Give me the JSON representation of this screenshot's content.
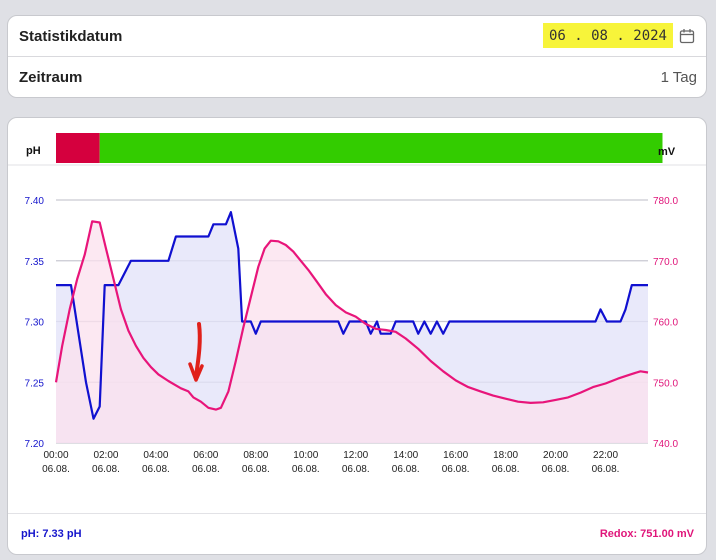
{
  "settings": {
    "date_label": "Statistikdatum",
    "date_value": "06 . 08 . 2024",
    "period_label": "Zeitraum",
    "period_value": "1 Tag",
    "calendar_icon": "calendar-icon",
    "highlight_color": "#f7f43a"
  },
  "chart_header": {
    "left_unit": "pH",
    "right_unit": "mV",
    "status_segments": [
      {
        "from_hour": 0,
        "to_hour": 1.75,
        "color": "#d5003e"
      },
      {
        "from_hour": 1.75,
        "to_hour": 24,
        "color": "#33cc00"
      }
    ]
  },
  "chart_data": {
    "type": "line",
    "title": "",
    "x_ticks": [
      {
        "time": "00:00",
        "date": "06.08."
      },
      {
        "time": "02:00",
        "date": "06.08."
      },
      {
        "time": "04:00",
        "date": "06.08."
      },
      {
        "time": "06:00",
        "date": "06.08."
      },
      {
        "time": "08:00",
        "date": "06.08."
      },
      {
        "time": "10:00",
        "date": "06.08."
      },
      {
        "time": "12:00",
        "date": "06.08."
      },
      {
        "time": "14:00",
        "date": "06.08."
      },
      {
        "time": "16:00",
        "date": "06.08."
      },
      {
        "time": "18:00",
        "date": "06.08."
      },
      {
        "time": "20:00",
        "date": "06.08."
      },
      {
        "time": "22:00",
        "date": "06.08."
      }
    ],
    "xlim_hours": [
      0,
      23.7
    ],
    "y_left": {
      "ticks": [
        "7.20",
        "7.25",
        "7.30",
        "7.35",
        "7.40"
      ],
      "ylim": [
        7.2,
        7.4
      ],
      "color": "#1515cc"
    },
    "y_right": {
      "ticks": [
        "740.0",
        "750.0",
        "760.0",
        "770.0",
        "780.0"
      ],
      "ylim": [
        740,
        780
      ],
      "color": "#e0157a"
    },
    "grid": true,
    "series": [
      {
        "axis": "left",
        "color": "#1010d0",
        "fill": "#e2e2f8",
        "points": [
          [
            0,
            7.33
          ],
          [
            0.6,
            7.33
          ],
          [
            0.9,
            7.29
          ],
          [
            1.2,
            7.25
          ],
          [
            1.5,
            7.22
          ],
          [
            1.75,
            7.23
          ],
          [
            1.95,
            7.33
          ],
          [
            2.5,
            7.33
          ],
          [
            3,
            7.35
          ],
          [
            3.7,
            7.35
          ],
          [
            4.5,
            7.35
          ],
          [
            4.8,
            7.37
          ],
          [
            5.5,
            7.37
          ],
          [
            6.1,
            7.37
          ],
          [
            6.3,
            7.38
          ],
          [
            6.8,
            7.38
          ],
          [
            7.0,
            7.39
          ],
          [
            7.3,
            7.36
          ],
          [
            7.45,
            7.3
          ],
          [
            7.8,
            7.3
          ],
          [
            8.0,
            7.29
          ],
          [
            8.2,
            7.3
          ],
          [
            9,
            7.3
          ],
          [
            10,
            7.3
          ],
          [
            11,
            7.3
          ],
          [
            11.3,
            7.3
          ],
          [
            11.5,
            7.29
          ],
          [
            11.75,
            7.3
          ],
          [
            12.4,
            7.3
          ],
          [
            12.6,
            7.29
          ],
          [
            12.85,
            7.3
          ],
          [
            13.0,
            7.29
          ],
          [
            13.4,
            7.29
          ],
          [
            13.6,
            7.3
          ],
          [
            14.3,
            7.3
          ],
          [
            14.5,
            7.29
          ],
          [
            14.75,
            7.3
          ],
          [
            15.0,
            7.29
          ],
          [
            15.25,
            7.3
          ],
          [
            15.5,
            7.29
          ],
          [
            15.75,
            7.3
          ],
          [
            17,
            7.3
          ],
          [
            18,
            7.3
          ],
          [
            19,
            7.3
          ],
          [
            20,
            7.3
          ],
          [
            21,
            7.3
          ],
          [
            21.6,
            7.3
          ],
          [
            21.8,
            7.31
          ],
          [
            22.05,
            7.3
          ],
          [
            22.6,
            7.3
          ],
          [
            22.8,
            7.31
          ],
          [
            23.05,
            7.33
          ],
          [
            23.7,
            7.33
          ]
        ]
      },
      {
        "axis": "right",
        "color": "#e8157a",
        "fill": "#fbe0ee",
        "points": [
          [
            0,
            750
          ],
          [
            0.25,
            756
          ],
          [
            0.55,
            762
          ],
          [
            0.85,
            767
          ],
          [
            1.15,
            771
          ],
          [
            1.45,
            776.5
          ],
          [
            1.75,
            776.3
          ],
          [
            2.0,
            772
          ],
          [
            2.3,
            767
          ],
          [
            2.6,
            762
          ],
          [
            2.9,
            758.5
          ],
          [
            3.2,
            756
          ],
          [
            3.5,
            754
          ],
          [
            3.8,
            752.5
          ],
          [
            4.1,
            751.3
          ],
          [
            4.5,
            750.2
          ],
          [
            5.0,
            749
          ],
          [
            5.3,
            748.5
          ],
          [
            5.5,
            747.5
          ],
          [
            5.8,
            746.8
          ],
          [
            6.1,
            745.8
          ],
          [
            6.4,
            745.5
          ],
          [
            6.6,
            745.8
          ],
          [
            6.9,
            748.5
          ],
          [
            7.2,
            753.5
          ],
          [
            7.5,
            759
          ],
          [
            7.8,
            764
          ],
          [
            8.1,
            769
          ],
          [
            8.35,
            772
          ],
          [
            8.6,
            773.3
          ],
          [
            8.9,
            773.2
          ],
          [
            9.2,
            772.6
          ],
          [
            9.5,
            771.5
          ],
          [
            9.8,
            770
          ],
          [
            10.1,
            768.5
          ],
          [
            10.4,
            766.8
          ],
          [
            10.8,
            764.5
          ],
          [
            11.2,
            762.7
          ],
          [
            11.6,
            761.5
          ],
          [
            12.0,
            760.8
          ],
          [
            12.4,
            759.6
          ],
          [
            12.8,
            758.8
          ],
          [
            13.2,
            758.6
          ],
          [
            13.6,
            758.3
          ],
          [
            14,
            757.2
          ],
          [
            14.5,
            755.5
          ],
          [
            15,
            753.5
          ],
          [
            15.5,
            751.8
          ],
          [
            16,
            750.3
          ],
          [
            16.5,
            749.2
          ],
          [
            17,
            748.5
          ],
          [
            17.5,
            747.8
          ],
          [
            18,
            747.3
          ],
          [
            18.5,
            746.8
          ],
          [
            19,
            746.6
          ],
          [
            19.5,
            746.7
          ],
          [
            20,
            747.1
          ],
          [
            20.5,
            747.5
          ],
          [
            21,
            748.3
          ],
          [
            21.5,
            749.2
          ],
          [
            22,
            749.8
          ],
          [
            22.5,
            750.6
          ],
          [
            23,
            751.3
          ],
          [
            23.4,
            751.8
          ],
          [
            23.7,
            751.6
          ]
        ]
      }
    ],
    "annotation": {
      "type": "red-arrow",
      "color": "#e0201a"
    }
  },
  "footer": {
    "ph_text": "pH: 7.33 pH",
    "redox_text": "Redox: 751.00 mV"
  }
}
